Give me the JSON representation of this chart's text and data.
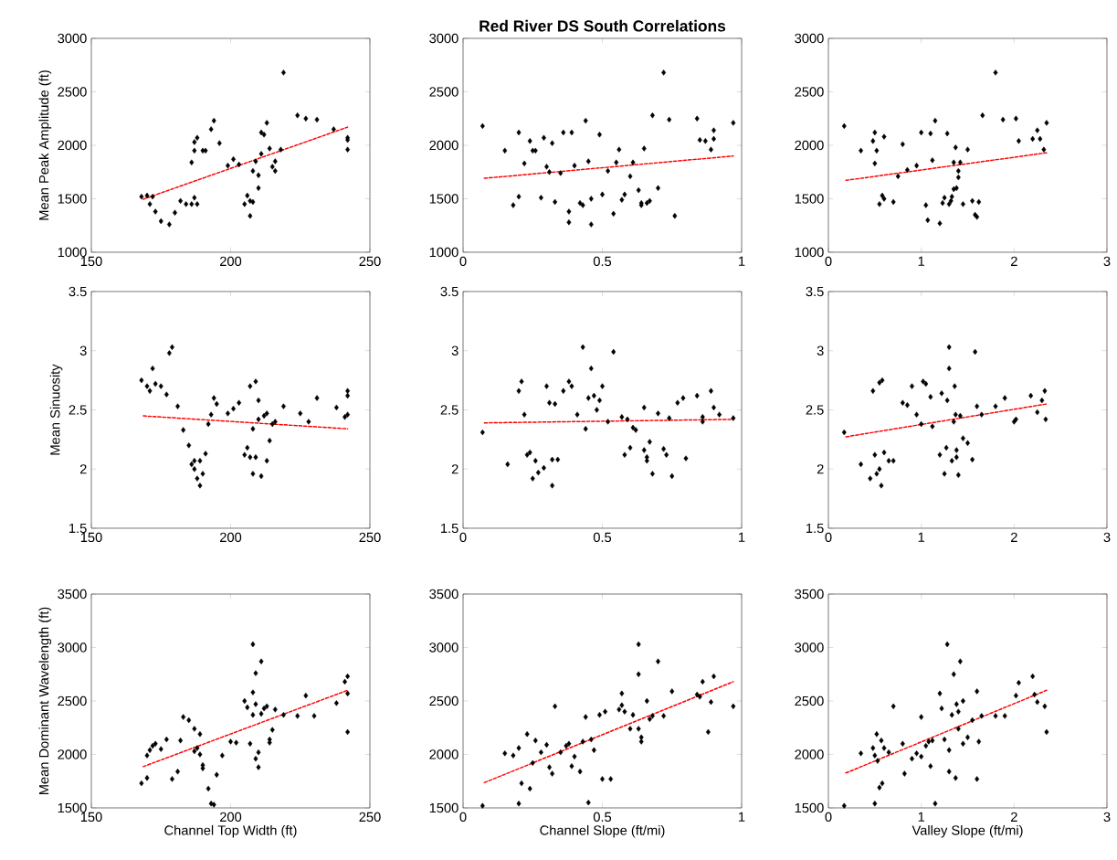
{
  "chart_data": [
    {
      "type": "scatter",
      "ylabel": "Mean Peak Amplitude (ft)",
      "xlim": [
        150,
        250
      ],
      "ylim": [
        1000,
        3000
      ],
      "xticks": [
        150,
        200,
        250
      ],
      "yticks": [
        1000,
        1500,
        2000,
        2500,
        3000
      ],
      "series": [
        {
          "color": "#000000",
          "marker": "diamond",
          "x": [
            168,
            170,
            172,
            171,
            173,
            175,
            178,
            180,
            182,
            184,
            186,
            187,
            188,
            186,
            187,
            187,
            188,
            190,
            191,
            193,
            194,
            196,
            199,
            201,
            203,
            205,
            206,
            207,
            207,
            208,
            208,
            209,
            210,
            210,
            211,
            211,
            212,
            213,
            214,
            215,
            216,
            216,
            218,
            219,
            224,
            227,
            231,
            237,
            242,
            242,
            242
          ],
          "values": [
            1520,
            1530,
            1520,
            1450,
            1380,
            1290,
            1260,
            1370,
            1480,
            1450,
            1450,
            1510,
            1450,
            1840,
            1950,
            2030,
            2070,
            1950,
            1950,
            2150,
            2230,
            2020,
            1810,
            1870,
            1820,
            1450,
            1530,
            1480,
            1340,
            1470,
            1760,
            1850,
            1600,
            1720,
            1920,
            2120,
            2100,
            2210,
            1970,
            1800,
            1760,
            1850,
            1960,
            2680,
            2280,
            2250,
            2240,
            2150,
            2050,
            2070,
            1960
          ]
        },
        {
          "type": "line",
          "color": "#ff0000",
          "line_style": "dashed",
          "marker": "none",
          "x": [
            168,
            242
          ],
          "values": [
            1490,
            2170
          ]
        }
      ]
    },
    {
      "type": "scatter",
      "title": "Red River DS South Correlations",
      "xlim": [
        0,
        1
      ],
      "ylim": [
        1000,
        3000
      ],
      "xticks": [
        0,
        0.5,
        1
      ],
      "yticks": [
        1000,
        1500,
        2000,
        2500,
        3000
      ],
      "series": [
        {
          "color": "#000000",
          "marker": "diamond",
          "x": [
            0.07,
            0.15,
            0.18,
            0.2,
            0.2,
            0.22,
            0.24,
            0.25,
            0.26,
            0.28,
            0.29,
            0.3,
            0.31,
            0.32,
            0.33,
            0.35,
            0.36,
            0.38,
            0.38,
            0.39,
            0.4,
            0.42,
            0.43,
            0.44,
            0.45,
            0.46,
            0.46,
            0.49,
            0.5,
            0.52,
            0.54,
            0.55,
            0.56,
            0.57,
            0.58,
            0.6,
            0.61,
            0.63,
            0.64,
            0.64,
            0.65,
            0.66,
            0.67,
            0.68,
            0.7,
            0.72,
            0.74,
            0.76,
            0.84,
            0.85,
            0.87,
            0.89,
            0.9,
            0.9,
            0.97
          ],
          "values": [
            2180,
            1950,
            1440,
            1520,
            2120,
            1830,
            2040,
            1950,
            1950,
            1510,
            2070,
            1800,
            1750,
            2020,
            1470,
            1740,
            2120,
            1280,
            1380,
            2120,
            1810,
            1460,
            1440,
            2230,
            1850,
            1260,
            1500,
            2100,
            1540,
            1760,
            1360,
            1840,
            1960,
            1490,
            1540,
            1710,
            1840,
            1580,
            1460,
            1440,
            1970,
            1460,
            1480,
            2280,
            1600,
            2680,
            2240,
            1340,
            2250,
            2050,
            2040,
            1960,
            2140,
            2060,
            2210
          ]
        },
        {
          "type": "line",
          "color": "#ff0000",
          "line_style": "dashed",
          "marker": "none",
          "x": [
            0.07,
            0.97
          ],
          "values": [
            1690,
            1900
          ]
        }
      ]
    },
    {
      "type": "scatter",
      "xlim": [
        0,
        3
      ],
      "ylim": [
        1000,
        3000
      ],
      "xticks": [
        0,
        1,
        2,
        3
      ],
      "yticks": [
        1000,
        1500,
        2000,
        2500,
        3000
      ],
      "series": [
        {
          "color": "#000000",
          "marker": "diamond",
          "x": [
            0.17,
            0.35,
            0.48,
            0.5,
            0.5,
            0.52,
            0.55,
            0.58,
            0.6,
            0.6,
            0.7,
            0.75,
            0.8,
            0.85,
            0.95,
            1.0,
            1.05,
            1.07,
            1.1,
            1.12,
            1.15,
            1.2,
            1.23,
            1.25,
            1.28,
            1.3,
            1.32,
            1.33,
            1.35,
            1.35,
            1.37,
            1.38,
            1.4,
            1.4,
            1.42,
            1.45,
            1.5,
            1.55,
            1.58,
            1.6,
            1.62,
            1.66,
            1.8,
            1.88,
            2.02,
            2.05,
            2.2,
            2.25,
            2.28,
            2.32,
            2.35
          ],
          "values": [
            2180,
            1950,
            2040,
            2120,
            1830,
            1950,
            1450,
            1530,
            2080,
            1500,
            1470,
            1710,
            2010,
            1770,
            1810,
            2120,
            1440,
            1300,
            2110,
            1860,
            2230,
            1270,
            1460,
            1510,
            2110,
            1450,
            1480,
            1520,
            1590,
            1840,
            1980,
            1600,
            1760,
            1700,
            1840,
            1450,
            1960,
            1480,
            1350,
            1330,
            1470,
            2280,
            2680,
            2240,
            2250,
            2040,
            2060,
            2140,
            2060,
            1960,
            2210
          ]
        },
        {
          "type": "line",
          "color": "#ff0000",
          "line_style": "dashed",
          "marker": "none",
          "x": [
            0.17,
            2.35
          ],
          "values": [
            1670,
            1930
          ]
        }
      ]
    },
    {
      "type": "scatter",
      "ylabel": "Mean Sinuosity",
      "xlim": [
        150,
        250
      ],
      "ylim": [
        1.5,
        3.5
      ],
      "xticks": [
        150,
        200,
        250
      ],
      "yticks": [
        1.5,
        2,
        2.5,
        3,
        3.5
      ],
      "series": [
        {
          "color": "#000000",
          "marker": "diamond",
          "x": [
            168,
            170,
            171,
            172,
            173,
            175,
            177,
            178,
            179,
            181,
            183,
            185,
            186,
            187,
            187,
            188,
            189,
            189,
            190,
            191,
            192,
            193,
            194,
            195,
            199,
            201,
            203,
            205,
            206,
            207,
            207,
            208,
            208,
            209,
            209,
            210,
            210,
            211,
            212,
            213,
            213,
            214,
            215,
            216,
            219,
            225,
            228,
            231,
            238,
            241,
            242,
            242,
            242
          ],
          "values": [
            2.75,
            2.7,
            2.66,
            2.85,
            2.72,
            2.7,
            2.63,
            2.98,
            3.03,
            2.53,
            2.33,
            2.2,
            2.04,
            2.07,
            2.0,
            1.92,
            1.86,
            2.07,
            1.96,
            2.13,
            2.38,
            2.46,
            2.6,
            2.55,
            2.47,
            2.51,
            2.56,
            2.12,
            2.18,
            2.1,
            2.7,
            1.96,
            2.34,
            2.74,
            2.1,
            2.58,
            2.42,
            1.94,
            2.45,
            2.47,
            2.07,
            2.24,
            2.38,
            2.4,
            2.53,
            2.47,
            2.4,
            2.6,
            2.52,
            2.44,
            2.62,
            2.66,
            2.46
          ]
        },
        {
          "type": "line",
          "color": "#ff0000",
          "line_style": "dashed",
          "marker": "none",
          "x": [
            168,
            242
          ],
          "values": [
            2.45,
            2.34
          ]
        }
      ]
    },
    {
      "type": "scatter",
      "xlim": [
        0,
        1
      ],
      "ylim": [
        1.5,
        3.5
      ],
      "xticks": [
        0,
        0.5,
        1
      ],
      "yticks": [
        1.5,
        2,
        2.5,
        3,
        3.5
      ],
      "series": [
        {
          "color": "#000000",
          "marker": "diamond",
          "x": [
            0.07,
            0.16,
            0.2,
            0.21,
            0.22,
            0.23,
            0.24,
            0.25,
            0.26,
            0.27,
            0.29,
            0.3,
            0.31,
            0.32,
            0.32,
            0.33,
            0.34,
            0.36,
            0.38,
            0.39,
            0.41,
            0.43,
            0.44,
            0.45,
            0.46,
            0.47,
            0.48,
            0.49,
            0.5,
            0.52,
            0.54,
            0.57,
            0.58,
            0.59,
            0.6,
            0.61,
            0.62,
            0.65,
            0.65,
            0.66,
            0.66,
            0.67,
            0.68,
            0.7,
            0.72,
            0.73,
            0.74,
            0.75,
            0.77,
            0.79,
            0.8,
            0.84,
            0.86,
            0.86,
            0.89,
            0.9,
            0.92,
            0.97
          ],
          "values": [
            2.31,
            2.04,
            2.66,
            2.74,
            2.46,
            2.12,
            2.14,
            1.92,
            2.07,
            1.97,
            2.01,
            2.7,
            2.56,
            2.08,
            1.86,
            2.55,
            2.08,
            2.66,
            2.74,
            2.7,
            2.46,
            3.03,
            2.34,
            2.6,
            2.85,
            2.62,
            2.5,
            2.58,
            2.7,
            2.4,
            2.99,
            2.44,
            2.12,
            2.42,
            2.18,
            2.35,
            2.33,
            2.52,
            2.16,
            2.1,
            2.07,
            2.23,
            1.96,
            2.47,
            2.17,
            2.12,
            2.43,
            1.94,
            2.56,
            2.6,
            2.09,
            2.62,
            2.4,
            2.44,
            2.66,
            2.52,
            2.46,
            2.43
          ]
        },
        {
          "type": "line",
          "color": "#ff0000",
          "line_style": "dashed",
          "marker": "none",
          "x": [
            0.07,
            0.97
          ],
          "values": [
            2.39,
            2.42
          ]
        }
      ]
    },
    {
      "type": "scatter",
      "xlim": [
        0,
        3
      ],
      "ylim": [
        1.5,
        3.5
      ],
      "xticks": [
        0,
        1,
        2,
        3
      ],
      "yticks": [
        1.5,
        2,
        2.5,
        3,
        3.5
      ],
      "series": [
        {
          "color": "#000000",
          "marker": "diamond",
          "x": [
            0.17,
            0.35,
            0.45,
            0.48,
            0.5,
            0.52,
            0.55,
            0.55,
            0.57,
            0.58,
            0.6,
            0.65,
            0.7,
            0.8,
            0.85,
            0.9,
            0.95,
            1.0,
            1.02,
            1.05,
            1.1,
            1.12,
            1.2,
            1.22,
            1.25,
            1.27,
            1.28,
            1.3,
            1.3,
            1.33,
            1.35,
            1.36,
            1.37,
            1.38,
            1.38,
            1.4,
            1.42,
            1.45,
            1.5,
            1.55,
            1.58,
            1.6,
            1.65,
            1.8,
            1.9,
            2.0,
            2.02,
            2.18,
            2.25,
            2.3,
            2.33,
            2.34
          ],
          "values": [
            2.31,
            2.04,
            1.92,
            2.66,
            2.12,
            1.96,
            2.73,
            2.0,
            1.86,
            2.75,
            2.14,
            2.07,
            2.07,
            2.56,
            2.54,
            2.7,
            2.46,
            2.38,
            2.74,
            2.72,
            2.61,
            2.36,
            2.12,
            2.64,
            1.96,
            2.18,
            2.58,
            3.03,
            2.85,
            2.07,
            2.4,
            2.7,
            2.46,
            2.1,
            2.16,
            1.95,
            2.45,
            2.26,
            2.22,
            2.08,
            2.99,
            2.53,
            2.46,
            2.53,
            2.6,
            2.4,
            2.42,
            2.62,
            2.48,
            2.58,
            2.66,
            2.42
          ]
        },
        {
          "type": "line",
          "color": "#ff0000",
          "line_style": "dashed",
          "marker": "none",
          "x": [
            0.17,
            2.35
          ],
          "values": [
            2.27,
            2.55
          ]
        }
      ]
    },
    {
      "type": "scatter",
      "ylabel": "Mean Dominant Wavelength (ft)",
      "xlabel": "Channel Top Width (ft)",
      "xlim": [
        150,
        250
      ],
      "ylim": [
        1500,
        3500
      ],
      "xticks": [
        150,
        200,
        250
      ],
      "yticks": [
        1500,
        2000,
        2500,
        3000,
        3500
      ],
      "series": [
        {
          "color": "#000000",
          "marker": "diamond",
          "x": [
            168,
            170,
            170,
            171,
            172,
            173,
            175,
            177,
            179,
            181,
            182,
            183,
            185,
            187,
            187,
            188,
            189,
            189,
            190,
            190,
            192,
            193,
            194,
            195,
            197,
            200,
            202,
            205,
            206,
            207,
            208,
            208,
            208,
            209,
            209,
            209,
            210,
            210,
            211,
            211,
            212,
            213,
            214,
            214,
            215,
            216,
            219,
            224,
            227,
            230,
            238,
            241,
            242,
            242,
            242
          ],
          "values": [
            1730,
            1780,
            1990,
            2040,
            2080,
            2100,
            2050,
            2140,
            1770,
            1840,
            2130,
            2350,
            2320,
            2240,
            2030,
            2060,
            2190,
            2000,
            1870,
            1900,
            1680,
            1540,
            1530,
            1810,
            1990,
            2120,
            2110,
            2500,
            2440,
            2100,
            2580,
            3030,
            2370,
            2760,
            2470,
            1960,
            1880,
            2020,
            2870,
            2380,
            2430,
            2450,
            2140,
            2110,
            2230,
            2420,
            2370,
            2360,
            2550,
            2360,
            2480,
            2680,
            2730,
            2570,
            2210
          ]
        },
        {
          "type": "line",
          "color": "#ff0000",
          "line_style": "dashed",
          "marker": "none",
          "x": [
            168,
            242
          ],
          "values": [
            1880,
            2600
          ]
        }
      ]
    },
    {
      "type": "scatter",
      "xlabel": "Channel Slope (ft/mi)",
      "xlim": [
        0,
        1
      ],
      "ylim": [
        1500,
        3500
      ],
      "xticks": [
        0,
        0.5,
        1
      ],
      "yticks": [
        1500,
        2000,
        2500,
        3000,
        3500
      ],
      "series": [
        {
          "color": "#000000",
          "marker": "diamond",
          "x": [
            0.07,
            0.15,
            0.18,
            0.2,
            0.2,
            0.21,
            0.23,
            0.24,
            0.25,
            0.26,
            0.28,
            0.3,
            0.31,
            0.32,
            0.33,
            0.35,
            0.37,
            0.38,
            0.39,
            0.4,
            0.42,
            0.43,
            0.44,
            0.45,
            0.46,
            0.47,
            0.49,
            0.5,
            0.51,
            0.53,
            0.56,
            0.57,
            0.57,
            0.58,
            0.6,
            0.61,
            0.63,
            0.63,
            0.63,
            0.64,
            0.64,
            0.66,
            0.67,
            0.68,
            0.7,
            0.72,
            0.75,
            0.84,
            0.85,
            0.86,
            0.88,
            0.89,
            0.9,
            0.97
          ],
          "values": [
            1520,
            2010,
            1990,
            1540,
            2060,
            1730,
            2190,
            1680,
            1920,
            2130,
            2020,
            2090,
            1880,
            1820,
            2450,
            2020,
            2080,
            2100,
            1890,
            1980,
            1840,
            2120,
            2350,
            1550,
            2140,
            2040,
            2370,
            1770,
            2400,
            1770,
            2420,
            2460,
            2570,
            2400,
            2240,
            2370,
            3030,
            2750,
            2240,
            2160,
            2120,
            2500,
            2330,
            2360,
            2870,
            2360,
            2590,
            2560,
            2540,
            2680,
            2210,
            2490,
            2730,
            2450
          ]
        },
        {
          "type": "line",
          "color": "#ff0000",
          "line_style": "dashed",
          "marker": "none",
          "x": [
            0.07,
            0.97
          ],
          "values": [
            1730,
            2680
          ]
        }
      ]
    },
    {
      "type": "scatter",
      "xlabel": "Valley Slope (ft/mi)",
      "xlim": [
        0,
        3
      ],
      "ylim": [
        1500,
        3500
      ],
      "xticks": [
        0,
        1,
        2,
        3
      ],
      "yticks": [
        1500,
        2000,
        2500,
        3000,
        3500
      ],
      "series": [
        {
          "color": "#000000",
          "marker": "diamond",
          "x": [
            0.17,
            0.35,
            0.48,
            0.5,
            0.5,
            0.52,
            0.53,
            0.55,
            0.57,
            0.58,
            0.6,
            0.65,
            0.7,
            0.8,
            0.82,
            0.9,
            0.95,
            1.0,
            1.0,
            1.05,
            1.08,
            1.1,
            1.12,
            1.15,
            1.2,
            1.22,
            1.25,
            1.28,
            1.3,
            1.3,
            1.33,
            1.35,
            1.37,
            1.38,
            1.4,
            1.4,
            1.42,
            1.45,
            1.45,
            1.5,
            1.55,
            1.6,
            1.6,
            1.62,
            1.65,
            1.8,
            1.9,
            2.02,
            2.05,
            2.2,
            2.22,
            2.25,
            2.33,
            2.35
          ],
          "values": [
            1520,
            2010,
            2060,
            1990,
            1540,
            2190,
            1940,
            1690,
            2130,
            1730,
            2060,
            2020,
            2450,
            2100,
            1820,
            1960,
            2010,
            2350,
            1980,
            2080,
            2120,
            1890,
            2130,
            1540,
            2570,
            2430,
            2140,
            3030,
            2040,
            1840,
            2370,
            2750,
            1780,
            2470,
            2400,
            2240,
            2870,
            2100,
            2500,
            2160,
            2320,
            2590,
            1770,
            2120,
            2360,
            2360,
            2360,
            2550,
            2670,
            2730,
            2560,
            2490,
            2450,
            2210
          ]
        },
        {
          "type": "line",
          "color": "#ff0000",
          "line_style": "dashed",
          "marker": "none",
          "x": [
            0.17,
            2.35
          ],
          "values": [
            1820,
            2600
          ]
        }
      ]
    }
  ]
}
